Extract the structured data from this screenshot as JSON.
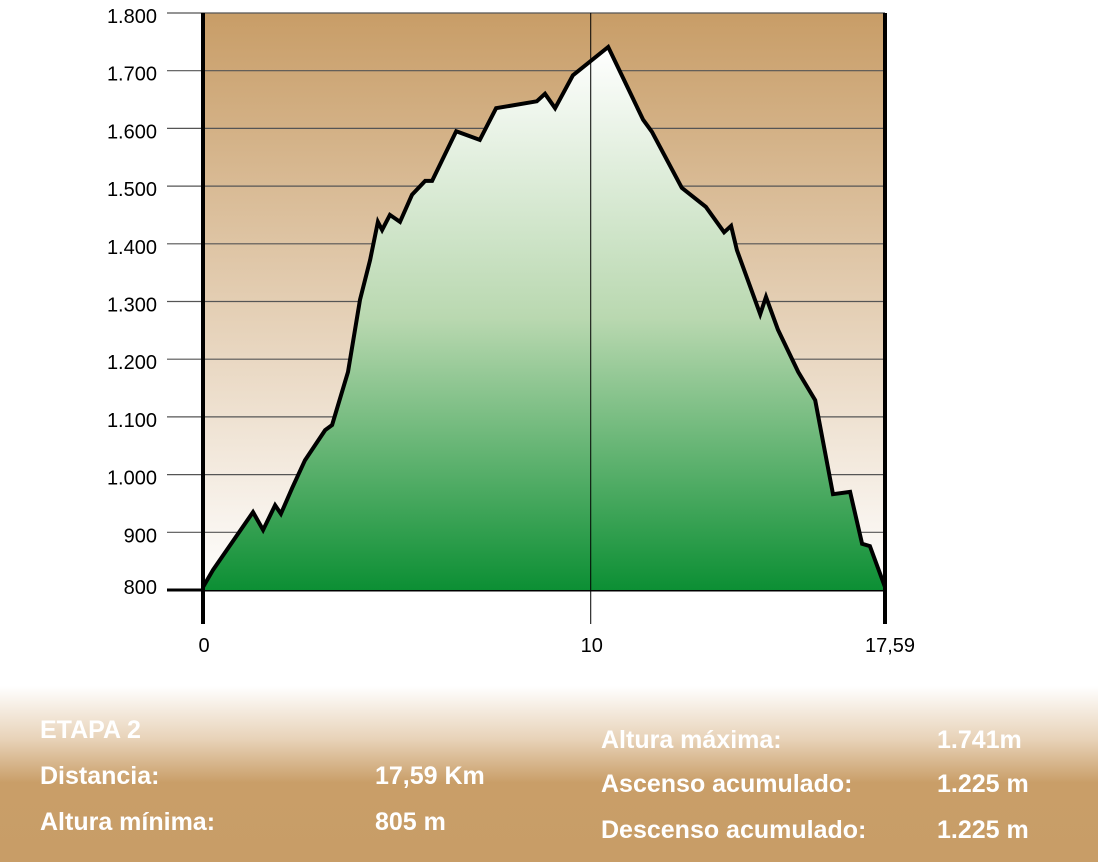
{
  "chart_data": {
    "type": "area",
    "title": "",
    "xlabel": "",
    "ylabel": "",
    "xlim": [
      0,
      17.59
    ],
    "ylim": [
      800,
      1800
    ],
    "x_ticks": [
      {
        "value": 0,
        "label": "0"
      },
      {
        "value": 10,
        "label": "10"
      },
      {
        "value": 17.59,
        "label": "17,59"
      }
    ],
    "y_ticks": [
      {
        "value": 1800,
        "label": "1.800"
      },
      {
        "value": 1700,
        "label": "1.700"
      },
      {
        "value": 1600,
        "label": "1.600"
      },
      {
        "value": 1500,
        "label": "1.500"
      },
      {
        "value": 1400,
        "label": "1.400"
      },
      {
        "value": 1300,
        "label": "1.300"
      },
      {
        "value": 1200,
        "label": "1.200"
      },
      {
        "value": 1100,
        "label": "1.100"
      },
      {
        "value": 1000,
        "label": "1.000"
      },
      {
        "value": 900,
        "label": "900"
      },
      {
        "value": 800,
        "label": "800"
      }
    ],
    "grid": true,
    "x": [
      0,
      0.26,
      1.29,
      1.55,
      1.86,
      2.01,
      2.3,
      2.63,
      3.15,
      3.33,
      3.74,
      4.05,
      4.31,
      4.51,
      4.62,
      4.82,
      5.08,
      5.39,
      5.73,
      5.91,
      6.53,
      7.14,
      7.56,
      8.61,
      8.82,
      9.08,
      9.54,
      10.45,
      11.35,
      11.58,
      12.35,
      12.97,
      13.44,
      13.62,
      13.77,
      14.37,
      14.52,
      14.83,
      15.35,
      15.79,
      16.25,
      16.69,
      17.0,
      17.2,
      17.59
    ],
    "y": [
      805,
      835,
      935,
      904,
      947,
      932,
      977,
      1025,
      1077,
      1086,
      1178,
      1303,
      1372,
      1438,
      1424,
      1450,
      1438,
      1485,
      1509,
      1509,
      1595,
      1580,
      1635,
      1647,
      1660,
      1635,
      1692,
      1741,
      1615,
      1594,
      1497,
      1464,
      1420,
      1431,
      1389,
      1278,
      1308,
      1251,
      1178,
      1129,
      966,
      970,
      880,
      876,
      805
    ],
    "colors": {
      "background_top": "#c89d67",
      "background_bottom": "#ffffff",
      "fill_top": "#ffffff",
      "fill_bottom": "#0c8f34",
      "line": "#000000"
    }
  },
  "summary": {
    "stage": "ETAPA 2",
    "distance_label": "Distancia:",
    "distance_value": "17,59 Km",
    "min_label": "Altura mínima:",
    "min_value": "805 m",
    "max_label": "Altura máxima:",
    "max_value": "1.741m",
    "ascent_label": "Ascenso acumulado:",
    "ascent_value": "1.225 m",
    "descent_label": "Descenso acumulado:",
    "descent_value": "1.225 m"
  }
}
